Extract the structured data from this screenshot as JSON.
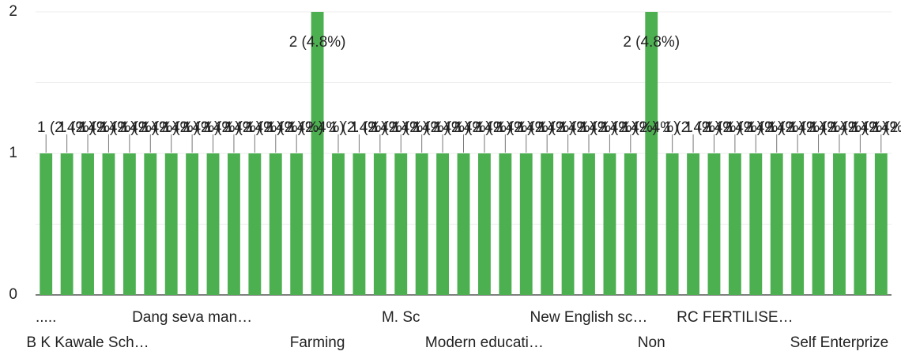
{
  "chart_data": {
    "type": "bar",
    "title": "",
    "xlabel": "",
    "ylabel": "",
    "ylim": [
      0,
      2
    ],
    "y_ticks": [
      "0",
      "1",
      "2"
    ],
    "grid": true,
    "legend": "none",
    "bar_color": "#4caf50",
    "categories": [
      ".....",
      "",
      "B K Kawale Sch…",
      "",
      "",
      "",
      "",
      "Dang seva man…",
      "",
      "",
      "",
      "",
      "",
      "Farming",
      "",
      "",
      "",
      "M. Sc",
      "",
      "",
      "",
      "Modern educati…",
      "",
      "",
      "",
      "",
      "New English sc…",
      "",
      "",
      "Non",
      "",
      "",
      "",
      "RC FERTILISE…",
      "",
      "",
      "",
      "",
      "Self Enterprize",
      "",
      ""
    ],
    "values": [
      1,
      1,
      1,
      1,
      1,
      1,
      1,
      1,
      1,
      1,
      1,
      1,
      1,
      2,
      1,
      1,
      1,
      1,
      1,
      1,
      1,
      1,
      1,
      1,
      1,
      1,
      1,
      1,
      1,
      2,
      1,
      1,
      1,
      1,
      1,
      1,
      1,
      1,
      1,
      1,
      1
    ],
    "data_labels": [
      "1 (2.4%)",
      "1 (2.4%)",
      "1 (2.4%)",
      "1 (2.4%)",
      "1 (2.4%)",
      "1 (2.4%)",
      "1 (2.4%)",
      "1 (2.4%)",
      "1 (2.4%)",
      "1 (2.4%)",
      "1 (2.4%)",
      "1 (2.4%)",
      "1 (2.4%)",
      "2 (4.8%)",
      "1 (2.4%)",
      "1 (2.4%)",
      "1 (2.4%)",
      "1 (2.4%)",
      "1 (2.4%)",
      "1 (2.4%)",
      "1 (2.4%)",
      "1 (2.4%)",
      "1 (2.4%)",
      "1 (2.4%)",
      "1 (2.4%)",
      "1 (2.4%)",
      "1 (2.4%)",
      "1 (2.4%)",
      "1 (2.4%)",
      "2 (4.8%)",
      "1 (2.4%)",
      "1 (2.4%)",
      "1 (2.4%)",
      "1 (2.4%)",
      "1 (2.4%)",
      "1 (2.4%)",
      "1 (2.4%)",
      "1 (2.4%)",
      "1 (2.4%)",
      "1 (2.4%)",
      "1 (2.4%)"
    ]
  }
}
